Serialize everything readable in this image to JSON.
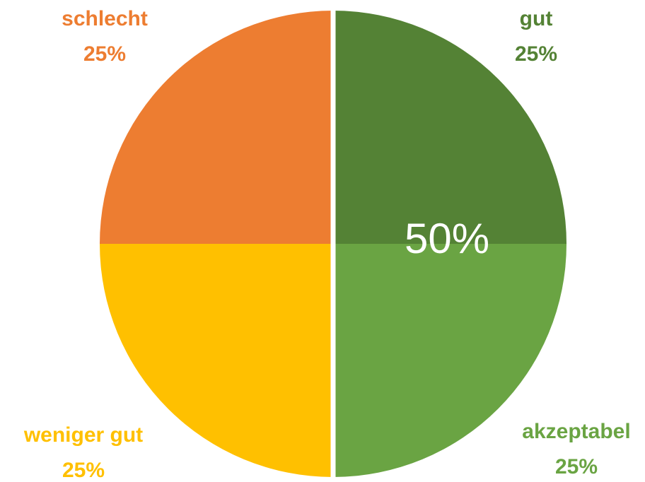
{
  "chart_data": {
    "type": "pie",
    "categories": [
      "gut",
      "akzeptabel",
      "weniger gut",
      "schlecht"
    ],
    "values": [
      25,
      25,
      25,
      25
    ],
    "value_labels": [
      "25%",
      "25%",
      "25%",
      "25%"
    ],
    "colors": [
      "#548235",
      "#6aa443",
      "#ffc000",
      "#ed7d31"
    ],
    "annotation": "50%"
  }
}
